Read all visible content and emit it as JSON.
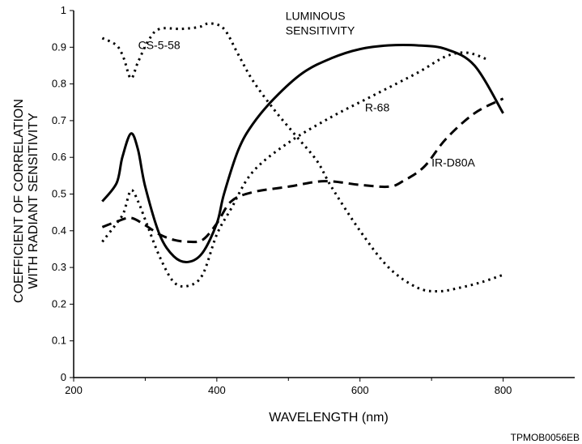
{
  "credit": "TPMOB0056EB",
  "chart_data": {
    "type": "line",
    "xlabel": "WAVELENGTH (nm)",
    "ylabel": [
      "COEFFICIENT OF CORRELATION",
      "WITH RADIANT SENSITIVITY"
    ],
    "xlim": [
      200,
      900
    ],
    "ylim": [
      0,
      1
    ],
    "x_ticks": [
      200,
      400,
      600,
      800
    ],
    "x_minor_ticks": [
      300,
      500,
      700
    ],
    "y_ticks": [
      0,
      0.1,
      0.2,
      0.3,
      0.4,
      0.5,
      0.6,
      0.7,
      0.8,
      0.9,
      1
    ],
    "y_tick_labels": [
      "0",
      "0.1",
      "0.2",
      "0.3",
      "0.4",
      "0.5",
      "0.6",
      "0.7",
      "0.8",
      "0.9",
      "1"
    ],
    "x_tick_labels": [
      "200",
      "400",
      "600",
      "800"
    ],
    "grid": false,
    "series": [
      {
        "name": "LUMINOUS SENSITIVITY",
        "style": "solid",
        "color": "#000000",
        "points": [
          [
            240,
            0.48
          ],
          [
            260,
            0.53
          ],
          [
            268,
            0.6
          ],
          [
            280,
            0.665
          ],
          [
            290,
            0.62
          ],
          [
            300,
            0.52
          ],
          [
            320,
            0.39
          ],
          [
            340,
            0.33
          ],
          [
            360,
            0.315
          ],
          [
            380,
            0.34
          ],
          [
            400,
            0.42
          ],
          [
            410,
            0.5
          ],
          [
            430,
            0.62
          ],
          [
            450,
            0.69
          ],
          [
            480,
            0.76
          ],
          [
            520,
            0.83
          ],
          [
            560,
            0.87
          ],
          [
            600,
            0.895
          ],
          [
            640,
            0.905
          ],
          [
            680,
            0.905
          ],
          [
            720,
            0.895
          ],
          [
            760,
            0.85
          ],
          [
            800,
            0.72
          ]
        ]
      },
      {
        "name": "CS-5-58",
        "style": "dotted",
        "color": "#000000",
        "points": [
          [
            240,
            0.925
          ],
          [
            260,
            0.905
          ],
          [
            270,
            0.87
          ],
          [
            280,
            0.815
          ],
          [
            290,
            0.86
          ],
          [
            305,
            0.92
          ],
          [
            320,
            0.95
          ],
          [
            350,
            0.95
          ],
          [
            375,
            0.955
          ],
          [
            390,
            0.965
          ],
          [
            410,
            0.95
          ],
          [
            430,
            0.88
          ],
          [
            450,
            0.81
          ],
          [
            480,
            0.73
          ],
          [
            510,
            0.66
          ],
          [
            540,
            0.59
          ],
          [
            560,
            0.52
          ],
          [
            600,
            0.4
          ],
          [
            640,
            0.3
          ],
          [
            680,
            0.245
          ],
          [
            710,
            0.235
          ],
          [
            740,
            0.245
          ],
          [
            770,
            0.26
          ],
          [
            800,
            0.28
          ]
        ]
      },
      {
        "name": "R-68",
        "style": "dotted",
        "color": "#000000",
        "points": [
          [
            240,
            0.37
          ],
          [
            260,
            0.42
          ],
          [
            270,
            0.45
          ],
          [
            280,
            0.51
          ],
          [
            290,
            0.48
          ],
          [
            300,
            0.43
          ],
          [
            320,
            0.33
          ],
          [
            340,
            0.26
          ],
          [
            360,
            0.25
          ],
          [
            380,
            0.28
          ],
          [
            400,
            0.39
          ],
          [
            420,
            0.46
          ],
          [
            450,
            0.56
          ],
          [
            500,
            0.64
          ],
          [
            560,
            0.71
          ],
          [
            620,
            0.77
          ],
          [
            680,
            0.83
          ],
          [
            720,
            0.875
          ],
          [
            750,
            0.885
          ],
          [
            780,
            0.865
          ]
        ]
      },
      {
        "name": "IR-D80A",
        "style": "dashed",
        "color": "#000000",
        "points": [
          [
            240,
            0.41
          ],
          [
            260,
            0.425
          ],
          [
            280,
            0.435
          ],
          [
            300,
            0.415
          ],
          [
            320,
            0.39
          ],
          [
            340,
            0.375
          ],
          [
            360,
            0.37
          ],
          [
            380,
            0.375
          ],
          [
            400,
            0.42
          ],
          [
            420,
            0.48
          ],
          [
            450,
            0.505
          ],
          [
            500,
            0.52
          ],
          [
            550,
            0.535
          ],
          [
            600,
            0.525
          ],
          [
            640,
            0.52
          ],
          [
            660,
            0.535
          ],
          [
            690,
            0.575
          ],
          [
            720,
            0.65
          ],
          [
            760,
            0.72
          ],
          [
            800,
            0.76
          ]
        ]
      }
    ],
    "annotations": [
      {
        "text": "CS-5-58",
        "x": 290,
        "y": 0.895
      },
      {
        "text": "LUMINOUS",
        "x": 496,
        "y": 0.975
      },
      {
        "text": "SENSITIVITY",
        "x": 496,
        "y": 0.935
      },
      {
        "text": "R-68",
        "x": 607,
        "y": 0.725
      },
      {
        "text": "IR-D80A",
        "x": 700,
        "y": 0.575
      }
    ]
  }
}
